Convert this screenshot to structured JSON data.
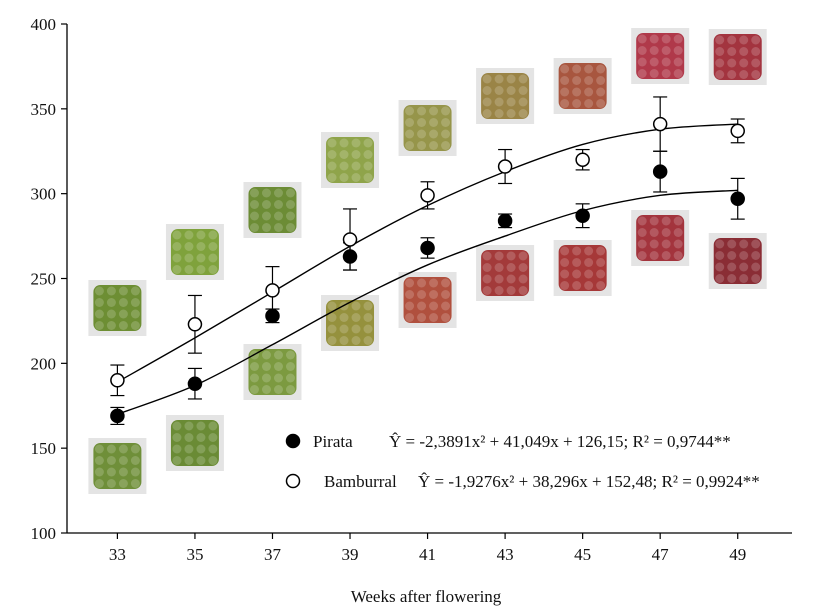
{
  "chart_data": {
    "type": "scatter",
    "title": "",
    "xlabel": "Weeks after flowering",
    "ylabel": "",
    "x": [
      33,
      35,
      37,
      39,
      41,
      43,
      45,
      47,
      49
    ],
    "xticks": [
      "33",
      "35",
      "37",
      "39",
      "41",
      "43",
      "45",
      "47",
      "49"
    ],
    "yticks": [
      "100",
      "150",
      "200",
      "250",
      "300",
      "350",
      "400"
    ],
    "xlim": [
      31.7,
      50.4
    ],
    "ylim": [
      100,
      400
    ],
    "grid": false,
    "legend_position": "bottom-right",
    "series": [
      {
        "name": "Pirata",
        "marker": "filled-circle",
        "equation_text": "Ŷ = -2,3891x² + 41,049x + 126,15; R² = 0,9744**",
        "values": [
          169,
          188,
          228,
          263,
          268,
          284,
          287,
          313,
          297
        ],
        "error": [
          5,
          9,
          4,
          8,
          6,
          4,
          7,
          12,
          12
        ],
        "fit_x_range": [
          33,
          49
        ],
        "fit_values": [
          170,
          187,
          211,
          236,
          258,
          275,
          290,
          299,
          302
        ]
      },
      {
        "name": "Bamburral",
        "marker": "open-circle",
        "equation_text": "Ŷ = -1,9276x² + 38,296x + 152,48; R² = 0,9924**",
        "values": [
          190,
          223,
          243,
          273,
          299,
          316,
          320,
          341,
          337
        ],
        "error": [
          9,
          17,
          14,
          18,
          8,
          10,
          6,
          16,
          7
        ],
        "fit_x_range": [
          33,
          49
        ],
        "fit_values": [
          189,
          215,
          242,
          269,
          293,
          313,
          329,
          338,
          341
        ]
      }
    ],
    "fruit_photos": [
      {
        "x": 33,
        "position": "below",
        "color": "#6f8f39"
      },
      {
        "x": 33,
        "position": "above",
        "color": "#6d8e33"
      },
      {
        "x": 35,
        "position": "below",
        "color": "#6a8b35"
      },
      {
        "x": 35,
        "position": "above",
        "color": "#7fa23c"
      },
      {
        "x": 37,
        "position": "below",
        "color": "#7c9a40"
      },
      {
        "x": 37,
        "position": "above",
        "color": "#6c8c35"
      },
      {
        "x": 39,
        "position": "below",
        "color": "#95913d"
      },
      {
        "x": 39,
        "position": "above",
        "color": "#8fa44a"
      },
      {
        "x": 41,
        "position": "below",
        "color": "#b0503e"
      },
      {
        "x": 41,
        "position": "above",
        "color": "#96954a"
      },
      {
        "x": 43,
        "position": "below",
        "color": "#a33a3a"
      },
      {
        "x": 43,
        "position": "above",
        "color": "#9a8446"
      },
      {
        "x": 45,
        "position": "below",
        "color": "#a63838"
      },
      {
        "x": 45,
        "position": "above",
        "color": "#a8563f"
      },
      {
        "x": 47,
        "position": "below",
        "color": "#a3343d"
      },
      {
        "x": 47,
        "position": "above",
        "color": "#b0394a"
      },
      {
        "x": 49,
        "position": "below",
        "color": "#8a2d35"
      },
      {
        "x": 49,
        "position": "above",
        "color": "#a3343f"
      }
    ]
  }
}
